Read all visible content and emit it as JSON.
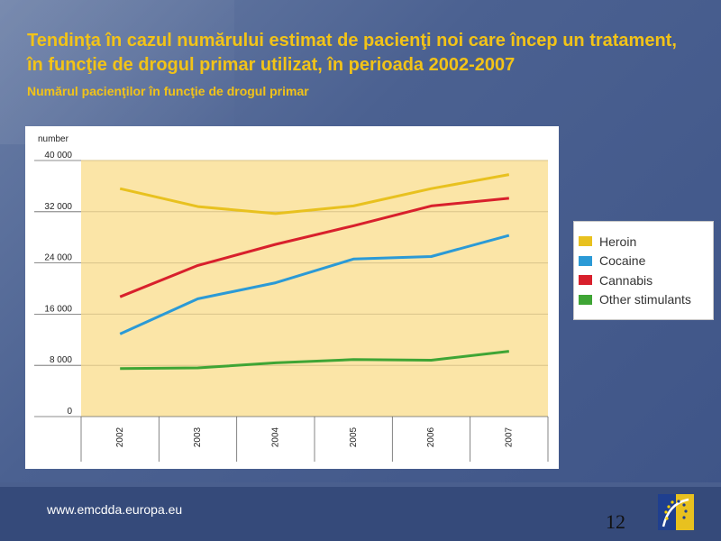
{
  "slide": {
    "title": "Tendinţa în cazul numărului estimat de pacienţi noi care încep un tratament, în funcţie de drogul primar utilizat, în perioada 2002-2007",
    "subtitle": "Numărul pacienţilor în funcţie de drogul primar",
    "url": "www.emcdda.europa.eu",
    "page_number": "12"
  },
  "colors": {
    "accent": "#f2c318",
    "plot_bg": "#fbe5a7",
    "heroin": "#e8c11f",
    "cocaine": "#2b9ad6",
    "cannabis": "#d8202c",
    "other_stimulants": "#3fa535"
  },
  "chart_data": {
    "type": "line",
    "title": "",
    "xlabel": "",
    "ylabel": "number",
    "x": [
      "2002",
      "2003",
      "2004",
      "2005",
      "2006",
      "2007"
    ],
    "y_ticks": [
      {
        "value": 0,
        "label": "0"
      },
      {
        "value": 8000,
        "label": "8 000"
      },
      {
        "value": 16000,
        "label": "16 000"
      },
      {
        "value": 24000,
        "label": "24 000"
      },
      {
        "value": 32000,
        "label": "32 000"
      },
      {
        "value": 40000,
        "label": "40 000"
      }
    ],
    "ylim": [
      0,
      40000
    ],
    "grid": true,
    "legend_position": "right",
    "series": [
      {
        "name": "Heroin",
        "color": "#e8c11f",
        "values": [
          35600,
          32800,
          31700,
          32900,
          35600,
          37800
        ]
      },
      {
        "name": "Cocaine",
        "color": "#2b9ad6",
        "values": [
          12900,
          18400,
          20900,
          24600,
          25000,
          28300
        ]
      },
      {
        "name": "Cannabis",
        "color": "#d8202c",
        "values": [
          18700,
          23600,
          26900,
          29800,
          32900,
          34100
        ]
      },
      {
        "name": "Other stimulants",
        "color": "#3fa535",
        "values": [
          7500,
          7600,
          8400,
          8900,
          8800,
          10200
        ]
      }
    ]
  }
}
